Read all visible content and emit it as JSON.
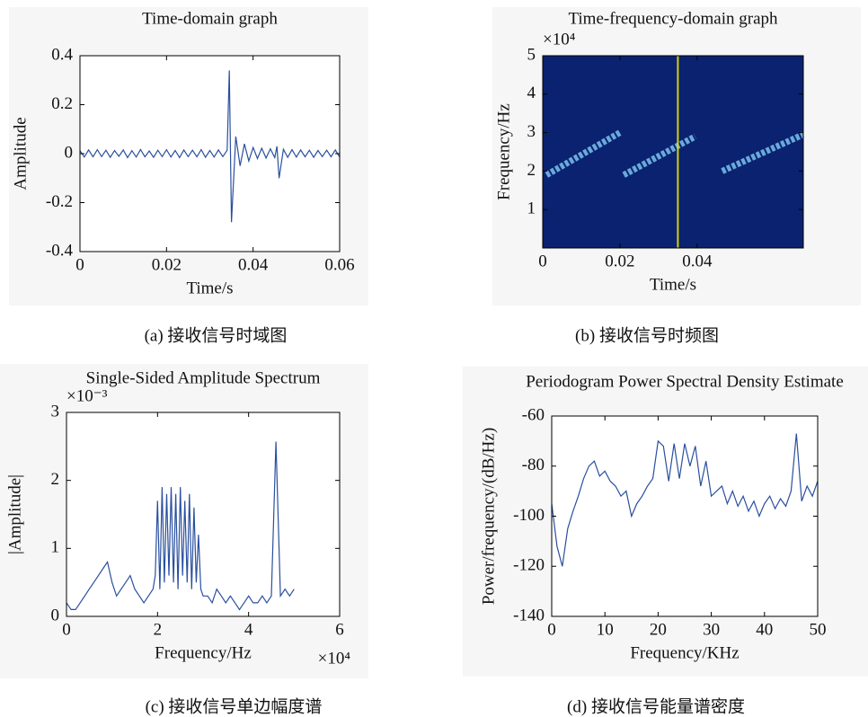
{
  "chart_data": [
    {
      "type": "line",
      "title": "Time-domain graph",
      "xlabel": "Time/s",
      "ylabel": "Amplitude",
      "caption": "(a)  接收信号时域图",
      "xlim": [
        0,
        0.06
      ],
      "ylim": [
        -0.4,
        0.4
      ],
      "xticks": [
        0,
        0.02,
        0.04,
        0.06
      ],
      "yticks": [
        -0.4,
        -0.2,
        0,
        0.2,
        0.4
      ],
      "series": [
        {
          "color": "#2a4f9e",
          "x": [
            0,
            0.001,
            0.002,
            0.003,
            0.004,
            0.005,
            0.006,
            0.007,
            0.008,
            0.009,
            0.01,
            0.011,
            0.012,
            0.013,
            0.014,
            0.015,
            0.016,
            0.017,
            0.018,
            0.019,
            0.02,
            0.021,
            0.022,
            0.023,
            0.024,
            0.025,
            0.026,
            0.027,
            0.028,
            0.029,
            0.03,
            0.031,
            0.032,
            0.033,
            0.034,
            0.0345,
            0.035,
            0.036,
            0.037,
            0.038,
            0.039,
            0.04,
            0.041,
            0.042,
            0.043,
            0.044,
            0.045,
            0.0455,
            0.046,
            0.047,
            0.048,
            0.049,
            0.05,
            0.051,
            0.052,
            0.053,
            0.054,
            0.055,
            0.056,
            0.057,
            0.058,
            0.059,
            0.06
          ],
          "values": [
            0.012,
            -0.014,
            0.015,
            -0.013,
            0.016,
            -0.012,
            0.014,
            -0.015,
            0.013,
            -0.011,
            0.015,
            -0.016,
            0.012,
            -0.014,
            0.017,
            -0.013,
            0.011,
            -0.015,
            0.014,
            -0.012,
            0.016,
            -0.014,
            0.013,
            -0.016,
            0.015,
            -0.012,
            0.014,
            -0.013,
            0.016,
            -0.015,
            0.013,
            -0.014,
            0.015,
            -0.012,
            0.014,
            0.34,
            -0.28,
            0.07,
            -0.05,
            0.04,
            -0.03,
            0.025,
            -0.02,
            0.022,
            -0.018,
            0.02,
            -0.016,
            0.03,
            -0.1,
            0.018,
            -0.015,
            0.016,
            -0.014,
            0.015,
            -0.013,
            0.014,
            -0.015,
            0.013,
            -0.012,
            0.014,
            -0.013,
            0.015,
            -0.014
          ]
        }
      ]
    },
    {
      "type": "spectrogram",
      "title": "Time-frequency-domain graph",
      "xlabel": "Time/s",
      "ylabel": "Frequency/Hz",
      "caption": "(b)  接收信号时频图",
      "y_multiplier": "×10⁴",
      "background": "#0b2270",
      "xlim": [
        0,
        0.0675
      ],
      "ylim": [
        0,
        50000
      ],
      "xticks": [
        0,
        0.02,
        0.04
      ],
      "yticks": [
        {
          "value": 10000,
          "label": "1"
        },
        {
          "value": 20000,
          "label": "2"
        },
        {
          "value": 30000,
          "label": "3"
        },
        {
          "value": 40000,
          "label": "4"
        },
        {
          "value": 50000,
          "label": "5"
        }
      ],
      "series": [
        {
          "color": "#8ad8ff",
          "x": [
            0.001,
            0.02
          ],
          "values": [
            19000,
            30000
          ]
        },
        {
          "color": "#8ad8ff",
          "x": [
            0.021,
            0.0395
          ],
          "values": [
            19000,
            29000
          ]
        },
        {
          "color": "#8ad8ff",
          "x": [
            0.0465,
            0.0675
          ],
          "values": [
            20000,
            29500
          ]
        },
        {
          "color": "#e6e600",
          "x": [
            0.035,
            0.035
          ],
          "values": [
            0,
            50000
          ]
        }
      ]
    },
    {
      "type": "line",
      "title": "Single-Sided Amplitude Spectrum",
      "xlabel": "Frequency/Hz",
      "ylabel": "|Amplitude|",
      "caption": "(c)  接收信号单边幅度谱",
      "y_multiplier": "×10⁻³",
      "x_multiplier": "×10⁴",
      "xlim": [
        0,
        60000
      ],
      "ylim": [
        0,
        0.003
      ],
      "xticks": [
        {
          "value": 0,
          "label": "0"
        },
        {
          "value": 20000,
          "label": "2"
        },
        {
          "value": 40000,
          "label": "4"
        },
        {
          "value": 60000,
          "label": "6"
        }
      ],
      "yticks": [
        {
          "value": 0,
          "label": "0"
        },
        {
          "value": 0.001,
          "label": "1"
        },
        {
          "value": 0.002,
          "label": "2"
        },
        {
          "value": 0.003,
          "label": "3"
        }
      ],
      "series": [
        {
          "color": "#2a4f9e",
          "x": [
            0,
            1000,
            2000,
            3000,
            4000,
            5000,
            6000,
            7000,
            8000,
            9000,
            10000,
            11000,
            12000,
            13000,
            14000,
            15000,
            16000,
            17000,
            18000,
            19000,
            19500,
            20000,
            20500,
            21000,
            21500,
            22000,
            22500,
            23000,
            23500,
            24000,
            24500,
            25000,
            25500,
            26000,
            26500,
            27000,
            27500,
            28000,
            28500,
            29000,
            29500,
            30000,
            31000,
            32000,
            33000,
            34000,
            35000,
            36000,
            37000,
            38000,
            39000,
            40000,
            41000,
            42000,
            43000,
            44000,
            45000,
            46000,
            47000,
            48000,
            49000,
            50000
          ],
          "values": [
            0.0002,
            0.0001,
            0.0001,
            0.0002,
            0.0003,
            0.0004,
            0.0005,
            0.0006,
            0.0007,
            0.0008,
            0.0005,
            0.0003,
            0.0004,
            0.0005,
            0.0006,
            0.0004,
            0.0003,
            0.0002,
            0.0003,
            0.0004,
            0.0006,
            0.0017,
            0.0004,
            0.0019,
            0.0005,
            0.0018,
            0.0006,
            0.0019,
            0.0005,
            0.0018,
            0.0004,
            0.0019,
            0.0006,
            0.0017,
            0.0005,
            0.0018,
            0.0004,
            0.0016,
            0.0005,
            0.0012,
            0.0004,
            0.0003,
            0.0003,
            0.0002,
            0.0004,
            0.0003,
            0.0002,
            0.0003,
            0.0002,
            0.0001,
            0.0002,
            0.0003,
            0.0002,
            0.0002,
            0.0003,
            0.0002,
            0.0003,
            0.00257,
            0.0003,
            0.0004,
            0.0003,
            0.0004
          ]
        }
      ]
    },
    {
      "type": "line",
      "title": "Periodogram Power Spectral Density Estimate",
      "xlabel": "Frequency/KHz",
      "ylabel": "Power/frequency/(dB/Hz)",
      "caption": "(d)  接收信号能量谱密度",
      "xlim": [
        0,
        50
      ],
      "ylim": [
        -140,
        -60
      ],
      "xticks": [
        0,
        10,
        20,
        30,
        40,
        50
      ],
      "yticks": [
        -140,
        -120,
        -100,
        -80,
        -60
      ],
      "series": [
        {
          "color": "#2a4f9e",
          "x": [
            0,
            1,
            2,
            3,
            4,
            5,
            6,
            7,
            8,
            9,
            10,
            11,
            12,
            13,
            14,
            15,
            16,
            17,
            18,
            19,
            20,
            21,
            22,
            23,
            24,
            25,
            26,
            27,
            28,
            29,
            30,
            31,
            32,
            33,
            34,
            35,
            36,
            37,
            38,
            39,
            40,
            41,
            42,
            43,
            44,
            45,
            46,
            47,
            48,
            49,
            50
          ],
          "values": [
            -95,
            -112,
            -120,
            -105,
            -98,
            -92,
            -85,
            -80,
            -78,
            -84,
            -82,
            -86,
            -88,
            -92,
            -90,
            -100,
            -95,
            -92,
            -88,
            -85,
            -70,
            -72,
            -86,
            -71,
            -85,
            -71,
            -80,
            -72,
            -88,
            -78,
            -92,
            -90,
            -88,
            -95,
            -90,
            -96,
            -92,
            -98,
            -94,
            -100,
            -95,
            -92,
            -97,
            -93,
            -96,
            -90,
            -67,
            -94,
            -88,
            -92,
            -86
          ]
        }
      ]
    }
  ]
}
